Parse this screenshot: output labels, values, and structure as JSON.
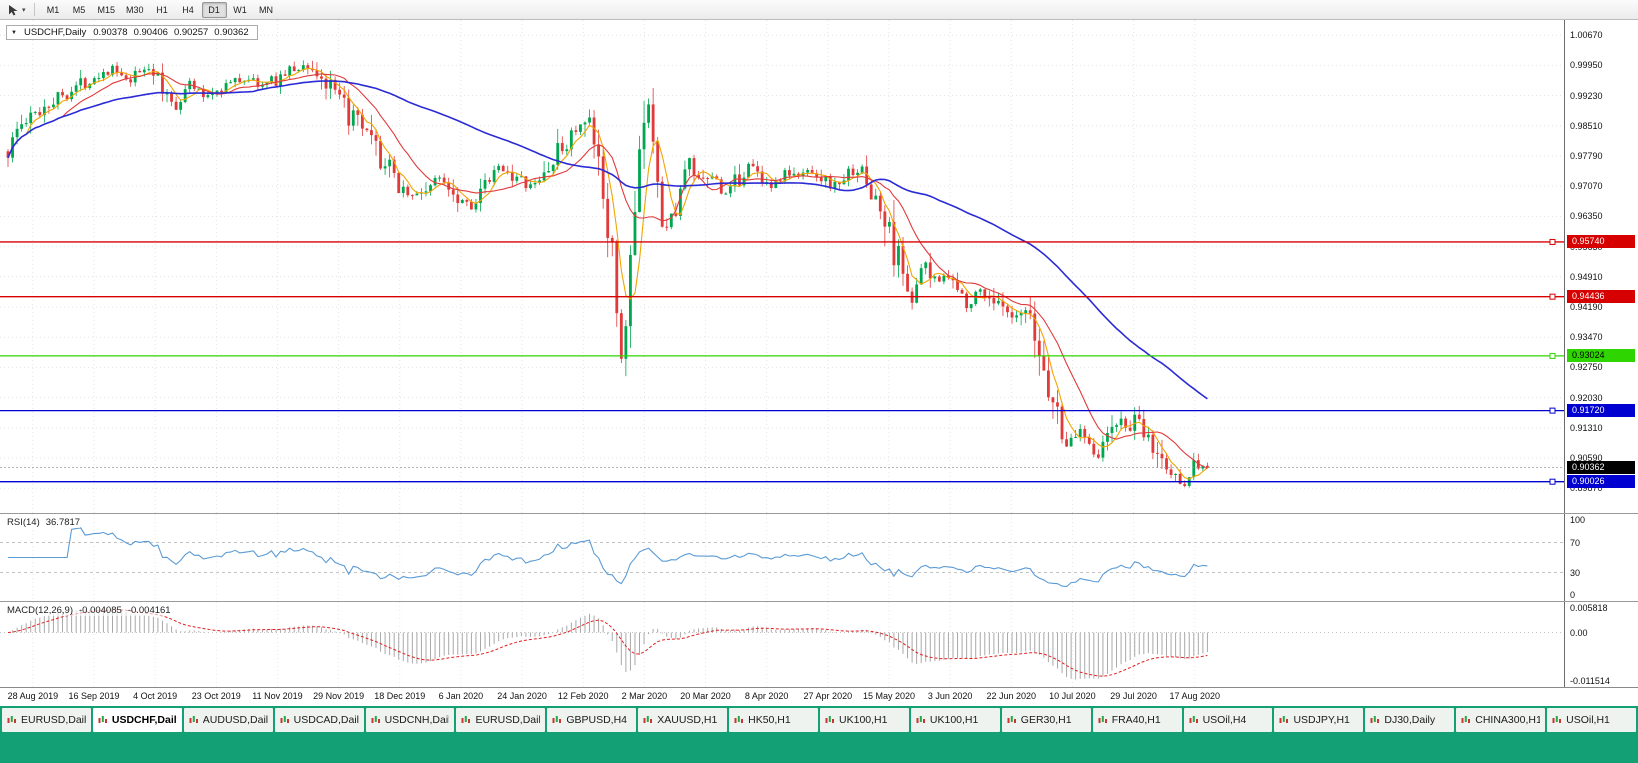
{
  "app": {
    "accent_green": "#13a074"
  },
  "toolbar": {
    "timeframes": [
      "M1",
      "M5",
      "M15",
      "M30",
      "H1",
      "H4",
      "D1",
      "W1",
      "MN"
    ],
    "active_timeframe": "D1"
  },
  "chart": {
    "header": {
      "symbol_period": "USDCHF,Daily",
      "open": "0.90378",
      "high": "0.90406",
      "low": "0.90257",
      "close": "0.90362"
    },
    "y_axis_ticks": [
      "1.00670",
      "0.99950",
      "0.99230",
      "0.98510",
      "0.97790",
      "0.97070",
      "0.96350",
      "0.95630",
      "0.94910",
      "0.94190",
      "0.93470",
      "0.92750",
      "0.92030",
      "0.91310",
      "0.90590",
      "0.89870"
    ],
    "levels": [
      {
        "price": 0.9574,
        "label": "0.95740",
        "color": "#d60000",
        "text_color": "#ffffff"
      },
      {
        "price": 0.94436,
        "label": "0.94436",
        "color": "#d60000",
        "text_color": "#ffffff"
      },
      {
        "price": 0.93024,
        "label": "0.93024",
        "color": "#2fd500",
        "text_color": "#000000"
      },
      {
        "price": 0.9172,
        "label": "0.91720",
        "color": "#0000d0",
        "text_color": "#ffffff"
      },
      {
        "price": 0.90026,
        "label": "0.90026",
        "color": "#0000d0",
        "text_color": "#ffffff"
      }
    ],
    "current_price": {
      "price": 0.90362,
      "label": "0.90362",
      "color": "#000000",
      "text_color": "#ffffff"
    }
  },
  "rsi": {
    "name": "RSI(14)",
    "value": "36.7817",
    "axis": [
      "100",
      "70",
      "30",
      "0"
    ],
    "upper": 70,
    "lower": 30,
    "line_color": "#5b9bd5"
  },
  "macd": {
    "name": "MACD(12,26,9)",
    "value_main": "-0.004085",
    "value_signal": "-0.004161",
    "axis_top": "0.005818",
    "axis_zero": "0.00",
    "axis_bottom": "-0.011514",
    "histogram_color": "#a8a8a8",
    "signal_color": "#e02020"
  },
  "time_axis": {
    "dates": [
      "28 Aug 2019",
      "16 Sep 2019",
      "4 Oct 2019",
      "23 Oct 2019",
      "11 Nov 2019",
      "29 Nov 2019",
      "18 Dec 2019",
      "6 Jan 2020",
      "24 Jan 2020",
      "12 Feb 2020",
      "2 Mar 2020",
      "20 Mar 2020",
      "8 Apr 2020",
      "27 Apr 2020",
      "15 May 2020",
      "3 Jun 2020",
      "22 Jun 2020",
      "10 Jul 2020",
      "29 Jul 2020",
      "17 Aug 2020"
    ]
  },
  "tabs": {
    "active_index": 1,
    "items": [
      "EURUSD,Daily",
      "USDCHF,Daily",
      "AUDUSD,Daily",
      "USDCAD,Daily",
      "USDCNH,Daily",
      "EURUSD,Daily",
      "GBPUSD,H4",
      "XAUUSD,H1",
      "HK50,H1",
      "UK100,H1",
      "UK100,H1",
      "GER30,H1",
      "FRA40,H1",
      "USOil,H4",
      "USDJPY,H1",
      "DJ30,Daily",
      "CHINA300,H1",
      "USOil,H1"
    ]
  },
  "chart_data": {
    "type": "candlestick",
    "symbol": "USDCHF",
    "period": "Daily",
    "candle_count": 265,
    "price_domain": [
      0.8928,
      1.0103
    ],
    "bull_color": "#00a650",
    "bear_color": "#e03a3a",
    "x_tick_start_fraction": 0.021,
    "x_tick_step_fraction": 0.0391,
    "candle_area_fraction": 0.772,
    "moving_averages": [
      {
        "type": "SMA",
        "period": 5,
        "color": "#f0a500"
      },
      {
        "type": "SMA",
        "period": 13,
        "color": "#e03a3a"
      },
      {
        "type": "SMA",
        "period": 55,
        "color": "#2b2bd5"
      }
    ],
    "indicators": {
      "rsi": {
        "period": 14,
        "current": 36.7817
      },
      "macd": {
        "fast": 12,
        "slow": 26,
        "signal": 9,
        "current_main": -0.004085,
        "current_signal": -0.004161,
        "display_range": [
          -0.011514,
          0.005818
        ]
      }
    },
    "levels": [
      0.9574,
      0.94436,
      0.93024,
      0.9172,
      0.90026
    ],
    "path_anchors": [
      [
        0.0,
        0.979
      ],
      [
        0.008,
        0.9845
      ],
      [
        0.02,
        0.987
      ],
      [
        0.032,
        0.9905
      ],
      [
        0.045,
        0.9925
      ],
      [
        0.06,
        0.995
      ],
      [
        0.075,
        0.9975
      ],
      [
        0.088,
        0.9985
      ],
      [
        0.1,
        0.995
      ],
      [
        0.112,
        0.9985
      ],
      [
        0.12,
        0.9995
      ],
      [
        0.128,
        0.993
      ],
      [
        0.14,
        0.99
      ],
      [
        0.152,
        0.9955
      ],
      [
        0.163,
        0.992
      ],
      [
        0.175,
        0.994
      ],
      [
        0.188,
        0.9955
      ],
      [
        0.2,
        0.9965
      ],
      [
        0.212,
        0.9945
      ],
      [
        0.225,
        0.9965
      ],
      [
        0.238,
        0.9985
      ],
      [
        0.25,
        0.9995
      ],
      [
        0.262,
        0.996
      ],
      [
        0.272,
        0.992
      ],
      [
        0.285,
        0.9875
      ],
      [
        0.298,
        0.9825
      ],
      [
        0.312,
        0.9765
      ],
      [
        0.325,
        0.9715
      ],
      [
        0.338,
        0.968
      ],
      [
        0.35,
        0.9705
      ],
      [
        0.362,
        0.973
      ],
      [
        0.375,
        0.9685
      ],
      [
        0.388,
        0.966
      ],
      [
        0.4,
        0.971
      ],
      [
        0.412,
        0.9755
      ],
      [
        0.425,
        0.972
      ],
      [
        0.438,
        0.97
      ],
      [
        0.45,
        0.975
      ],
      [
        0.462,
        0.9795
      ],
      [
        0.472,
        0.984
      ],
      [
        0.482,
        0.985
      ],
      [
        0.49,
        0.979
      ],
      [
        0.497,
        0.968
      ],
      [
        0.503,
        0.958
      ],
      [
        0.508,
        0.934
      ],
      [
        0.512,
        0.929
      ],
      [
        0.516,
        0.942
      ],
      [
        0.52,
        0.955
      ],
      [
        0.525,
        0.97
      ],
      [
        0.53,
        0.986
      ],
      [
        0.534,
        0.989
      ],
      [
        0.538,
        0.984
      ],
      [
        0.543,
        0.972
      ],
      [
        0.548,
        0.959
      ],
      [
        0.553,
        0.963
      ],
      [
        0.56,
        0.969
      ],
      [
        0.568,
        0.976
      ],
      [
        0.578,
        0.9705
      ],
      [
        0.588,
        0.9735
      ],
      [
        0.598,
        0.968
      ],
      [
        0.608,
        0.972
      ],
      [
        0.618,
        0.976
      ],
      [
        0.628,
        0.973
      ],
      [
        0.638,
        0.9705
      ],
      [
        0.648,
        0.974
      ],
      [
        0.658,
        0.9725
      ],
      [
        0.668,
        0.975
      ],
      [
        0.678,
        0.973
      ],
      [
        0.688,
        0.9705
      ],
      [
        0.698,
        0.973
      ],
      [
        0.708,
        0.975
      ],
      [
        0.718,
        0.9705
      ],
      [
        0.728,
        0.964
      ],
      [
        0.738,
        0.9565
      ],
      [
        0.748,
        0.949
      ],
      [
        0.755,
        0.9425
      ],
      [
        0.762,
        0.952
      ],
      [
        0.77,
        0.948
      ],
      [
        0.78,
        0.9505
      ],
      [
        0.79,
        0.9465
      ],
      [
        0.8,
        0.9425
      ],
      [
        0.81,
        0.946
      ],
      [
        0.82,
        0.944
      ],
      [
        0.83,
        0.9405
      ],
      [
        0.84,
        0.938
      ],
      [
        0.848,
        0.9405
      ],
      [
        0.856,
        0.934
      ],
      [
        0.865,
        0.9255
      ],
      [
        0.875,
        0.9155
      ],
      [
        0.885,
        0.9085
      ],
      [
        0.893,
        0.913
      ],
      [
        0.9,
        0.911
      ],
      [
        0.908,
        0.906
      ],
      [
        0.915,
        0.91
      ],
      [
        0.923,
        0.915
      ],
      [
        0.932,
        0.913
      ],
      [
        0.94,
        0.9145
      ],
      [
        0.95,
        0.91
      ],
      [
        0.96,
        0.906
      ],
      [
        0.97,
        0.902
      ],
      [
        0.98,
        0.9
      ],
      [
        0.99,
        0.9048
      ],
      [
        1.0,
        0.9036
      ]
    ]
  }
}
